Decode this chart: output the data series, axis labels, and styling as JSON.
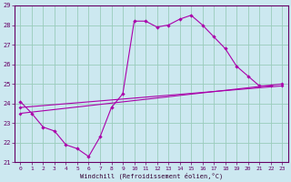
{
  "xlabel": "Windchill (Refroidissement éolien,°C)",
  "bg_color": "#cce8f0",
  "line_color": "#aa00aa",
  "grid_color": "#99ccbb",
  "xlim": [
    -0.5,
    23.5
  ],
  "ylim": [
    21,
    29
  ],
  "yticks": [
    21,
    22,
    23,
    24,
    25,
    26,
    27,
    28,
    29
  ],
  "xticks": [
    0,
    1,
    2,
    3,
    4,
    5,
    6,
    7,
    8,
    9,
    10,
    11,
    12,
    13,
    14,
    15,
    16,
    17,
    18,
    19,
    20,
    21,
    22,
    23
  ],
  "series1_x": [
    0,
    1,
    2,
    3,
    4,
    5,
    6,
    7,
    8,
    9,
    10,
    11,
    12,
    13,
    14,
    15,
    16,
    17,
    18,
    19,
    20,
    21,
    22
  ],
  "series1_y": [
    24.1,
    23.5,
    22.8,
    22.6,
    21.9,
    21.7,
    21.3,
    22.3,
    23.8,
    24.5,
    28.2,
    28.2,
    27.9,
    28.0,
    28.3,
    28.5,
    28.0,
    27.4,
    26.8,
    25.9,
    25.4,
    24.9,
    24.9
  ],
  "series2_x": [
    0,
    23
  ],
  "series2_y": [
    23.5,
    25.0
  ],
  "series3_x": [
    0,
    23
  ],
  "series3_y": [
    23.8,
    24.9
  ]
}
